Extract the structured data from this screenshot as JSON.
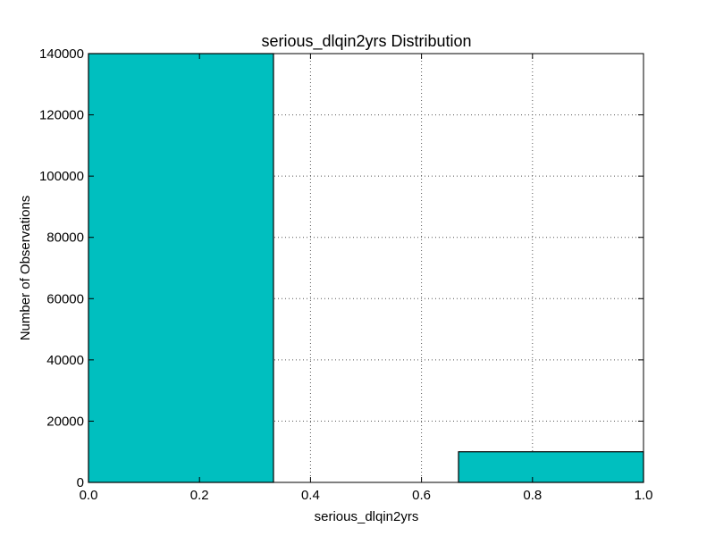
{
  "chart_data": {
    "type": "bar",
    "title": "serious_dlqin2yrs Distribution",
    "xlabel": "serious_dlqin2yrs",
    "ylabel": "Number of Observations",
    "xlim": [
      0.0,
      1.0
    ],
    "ylim": [
      0,
      140000
    ],
    "xticks": [
      "0.0",
      "0.2",
      "0.4",
      "0.6",
      "0.8",
      "1.0"
    ],
    "yticks": [
      "0",
      "20000",
      "40000",
      "60000",
      "80000",
      "100000",
      "120000",
      "140000"
    ],
    "grid": true,
    "bar_color": "#00bfbf",
    "bins": [
      {
        "x_start": 0.0,
        "x_end": 0.3333,
        "value": 140000
      },
      {
        "x_start": 0.3333,
        "x_end": 0.6667,
        "value": 0
      },
      {
        "x_start": 0.6667,
        "x_end": 1.0,
        "value": 10000
      }
    ]
  }
}
